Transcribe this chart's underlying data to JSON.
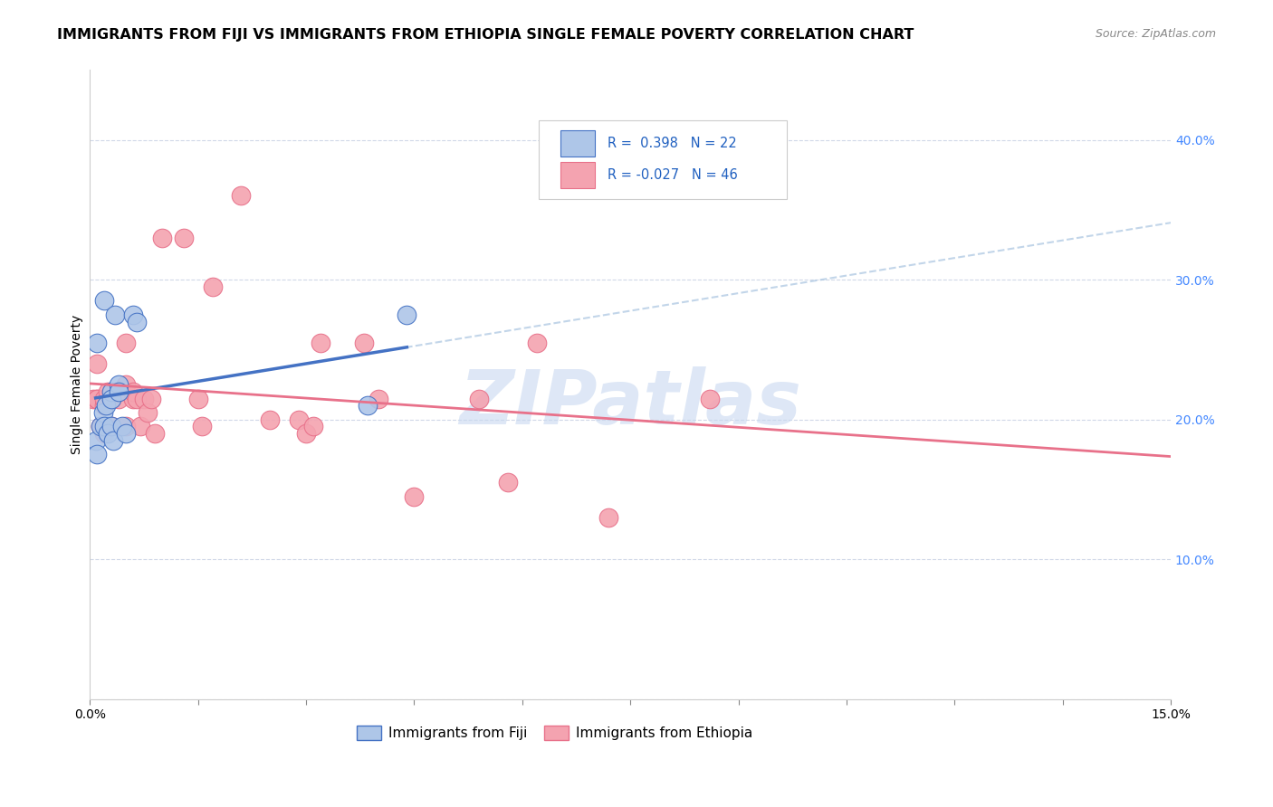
{
  "title": "IMMIGRANTS FROM FIJI VS IMMIGRANTS FROM ETHIOPIA SINGLE FEMALE POVERTY CORRELATION CHART",
  "source": "Source: ZipAtlas.com",
  "ylabel_label": "Single Female Poverty",
  "xlim": [
    0.0,
    0.15
  ],
  "ylim": [
    0.0,
    0.45
  ],
  "xticks": [
    0.0,
    0.015,
    0.03,
    0.045,
    0.06,
    0.075,
    0.09,
    0.105,
    0.12,
    0.135,
    0.15
  ],
  "xtick_labels": [
    "0.0%",
    "",
    "",
    "",
    "",
    "",
    "",
    "",
    "",
    "",
    "15.0%"
  ],
  "ytick_positions": [
    0.0,
    0.1,
    0.2,
    0.3,
    0.4
  ],
  "ytick_labels": [
    "",
    "10.0%",
    "20.0%",
    "30.0%",
    "40.0%"
  ],
  "fiji_color": "#aec6e8",
  "ethiopia_color": "#f4a3b0",
  "fiji_line_color": "#4472c4",
  "ethiopia_line_color": "#e8718a",
  "fiji_dash_color": "#a8c4e0",
  "fiji_R": 0.398,
  "fiji_N": 22,
  "ethiopia_R": -0.027,
  "ethiopia_N": 46,
  "legend_R_color": "#2060c0",
  "fiji_x": [
    0.0008,
    0.001,
    0.001,
    0.0015,
    0.0018,
    0.002,
    0.002,
    0.0022,
    0.0025,
    0.003,
    0.003,
    0.003,
    0.0032,
    0.0035,
    0.004,
    0.004,
    0.0045,
    0.005,
    0.006,
    0.0065,
    0.0385,
    0.044
  ],
  "fiji_y": [
    0.185,
    0.255,
    0.175,
    0.195,
    0.205,
    0.195,
    0.285,
    0.21,
    0.19,
    0.22,
    0.215,
    0.195,
    0.185,
    0.275,
    0.225,
    0.22,
    0.195,
    0.19,
    0.275,
    0.27,
    0.21,
    0.275
  ],
  "ethiopia_x": [
    0.0005,
    0.001,
    0.001,
    0.001,
    0.0015,
    0.002,
    0.002,
    0.002,
    0.0025,
    0.003,
    0.003,
    0.003,
    0.003,
    0.004,
    0.004,
    0.004,
    0.005,
    0.005,
    0.005,
    0.006,
    0.006,
    0.0065,
    0.007,
    0.0075,
    0.008,
    0.0085,
    0.009,
    0.01,
    0.013,
    0.015,
    0.0155,
    0.017,
    0.021,
    0.025,
    0.029,
    0.03,
    0.031,
    0.032,
    0.038,
    0.04,
    0.045,
    0.054,
    0.058,
    0.062,
    0.072,
    0.086
  ],
  "ethiopia_y": [
    0.215,
    0.215,
    0.215,
    0.24,
    0.195,
    0.19,
    0.21,
    0.215,
    0.22,
    0.195,
    0.215,
    0.215,
    0.215,
    0.22,
    0.22,
    0.215,
    0.255,
    0.225,
    0.195,
    0.215,
    0.22,
    0.215,
    0.195,
    0.215,
    0.205,
    0.215,
    0.19,
    0.33,
    0.33,
    0.215,
    0.195,
    0.295,
    0.36,
    0.2,
    0.2,
    0.19,
    0.195,
    0.255,
    0.255,
    0.215,
    0.145,
    0.215,
    0.155,
    0.255,
    0.13,
    0.215
  ],
  "background_color": "#ffffff",
  "grid_color": "#d0d8e8",
  "watermark_text": "ZIPatlas",
  "watermark_color": "#c8d8f0",
  "title_fontsize": 11.5,
  "axis_label_fontsize": 10,
  "tick_fontsize": 10,
  "source_fontsize": 9
}
